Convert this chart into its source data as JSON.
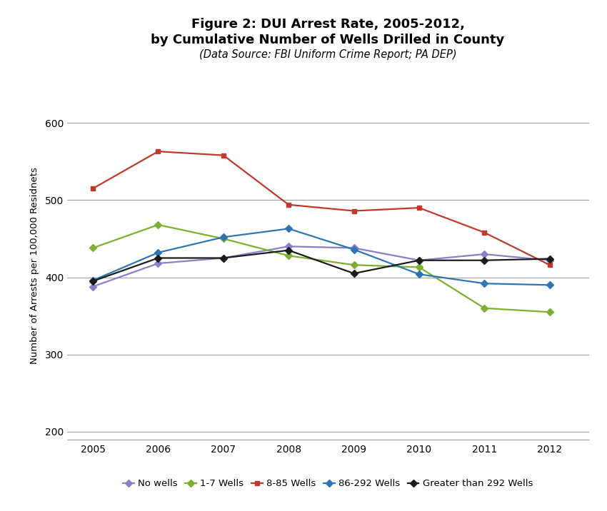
{
  "title_line1": "Figure 2: DUI Arrest Rate, 2005-2012,",
  "title_line2": "by Cumulative Number of Wells Drilled in County",
  "subtitle": "(Data Source: FBI Uniform Crime Report; PA DEP)",
  "ylabel": "Number of Arrests per 100,000 Residnets",
  "years": [
    2005,
    2006,
    2007,
    2008,
    2009,
    2010,
    2011,
    2012
  ],
  "series": [
    {
      "label": "No wells",
      "color": "#8B7FC7",
      "marker": "D",
      "markersize": 5,
      "data": [
        388,
        418,
        425,
        440,
        438,
        422,
        430,
        422
      ]
    },
    {
      "label": "1-7 Wells",
      "color": "#7DB030",
      "marker": "D",
      "markersize": 5,
      "data": [
        438,
        468,
        450,
        428,
        416,
        413,
        360,
        355
      ]
    },
    {
      "label": "8-85 Wells",
      "color": "#C0392B",
      "marker": "s",
      "markersize": 5,
      "data": [
        515,
        563,
        558,
        494,
        486,
        490,
        458,
        416
      ]
    },
    {
      "label": "86-292 Wells",
      "color": "#2E75B6",
      "marker": "D",
      "markersize": 5,
      "data": [
        396,
        432,
        452,
        463,
        436,
        404,
        392,
        390
      ]
    },
    {
      "label": "Greater than 292 Wells",
      "color": "#1C1C1C",
      "marker": "D",
      "markersize": 5,
      "data": [
        395,
        425,
        425,
        435,
        405,
        422,
        422,
        424
      ]
    }
  ],
  "ylim": [
    190,
    640
  ],
  "yticks": [
    200,
    300,
    400,
    500,
    600
  ],
  "xlim": [
    2004.6,
    2012.6
  ],
  "grid_color": "#A0A0A0",
  "background_color": "#FFFFFF",
  "title_fontsize": 13,
  "subtitle_fontsize": 10.5,
  "axis_label_fontsize": 9.5,
  "tick_fontsize": 10,
  "legend_fontsize": 9.5
}
